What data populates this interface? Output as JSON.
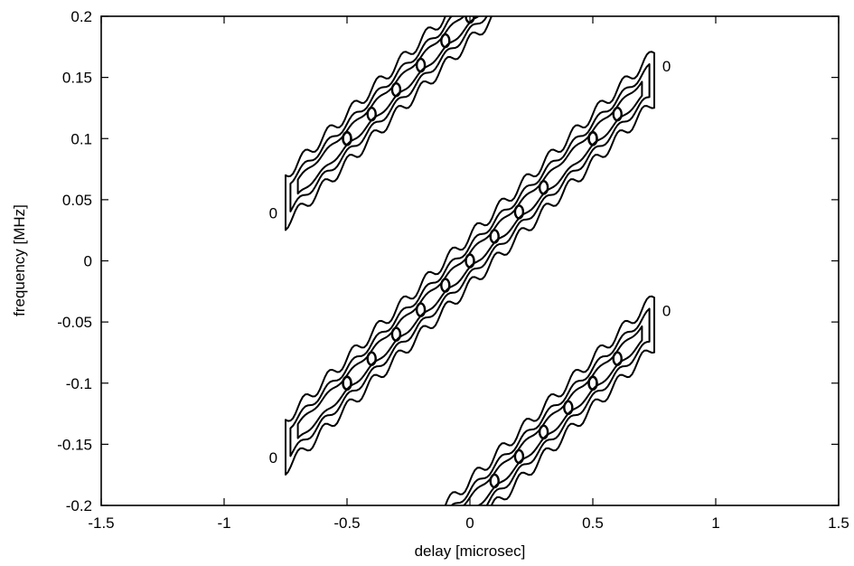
{
  "chart_data": {
    "type": "contour",
    "title": "",
    "xlabel": "delay [microsec]",
    "ylabel": "frequency [MHz]",
    "xlim": [
      -1.5,
      1.5
    ],
    "ylim": [
      -0.2,
      0.2
    ],
    "xticks": [
      -1.5,
      -1,
      -0.5,
      0,
      0.5,
      1,
      1.5
    ],
    "xtick_labels": [
      "-1.5",
      "-1",
      "-0.5",
      "0",
      "0.5",
      "1",
      "1.5"
    ],
    "yticks": [
      -0.2,
      -0.15,
      -0.1,
      -0.05,
      0,
      0.05,
      0.1,
      0.15,
      0.2
    ],
    "ytick_labels": [
      "-0.2",
      "-0.15",
      "-0.1",
      "-0.05",
      "0",
      "0.05",
      "0.1",
      "0.15",
      "0.2"
    ],
    "grid": false,
    "ridge_slope_mhz_per_microsec": 0.2,
    "ridges": [
      {
        "freq_offset_mhz": 0.2,
        "delay_range": [
          -0.75,
          0.15
        ]
      },
      {
        "freq_offset_mhz": 0.0,
        "delay_range": [
          -0.75,
          0.75
        ]
      },
      {
        "freq_offset_mhz": -0.2,
        "delay_range": [
          -0.15,
          0.75
        ]
      }
    ],
    "isolated_peaks": [
      {
        "x": -0.8,
        "y": 0.04
      },
      {
        "x": 0.8,
        "y": 0.16
      },
      {
        "x": -0.8,
        "y": -0.16
      },
      {
        "x": 0.8,
        "y": -0.04
      }
    ],
    "peak_label": "0"
  }
}
